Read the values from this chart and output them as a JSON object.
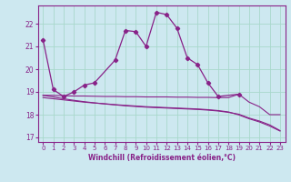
{
  "xlabel": "Windchill (Refroidissement éolien,°C)",
  "background_color": "#cde8f0",
  "grid_color": "#a8d8cc",
  "line_color": "#882288",
  "xlim": [
    -0.5,
    23.5
  ],
  "ylim": [
    16.8,
    22.8
  ],
  "yticks": [
    17,
    18,
    19,
    20,
    21,
    22
  ],
  "xticks": [
    0,
    1,
    2,
    3,
    4,
    5,
    6,
    7,
    8,
    9,
    10,
    11,
    12,
    13,
    14,
    15,
    16,
    17,
    18,
    19,
    20,
    21,
    22,
    23
  ],
  "line1_x": [
    0,
    1,
    2,
    3,
    4,
    5,
    7,
    8,
    9,
    10,
    11,
    12,
    13,
    14,
    15,
    16,
    17,
    19
  ],
  "line1_y": [
    21.3,
    19.1,
    18.8,
    19.0,
    19.3,
    19.4,
    20.4,
    21.7,
    21.65,
    21.0,
    22.5,
    22.4,
    21.8,
    20.5,
    20.2,
    19.4,
    18.8,
    18.9
  ],
  "line2_x": [
    0,
    1,
    2,
    3,
    4,
    5,
    6,
    7,
    8,
    9,
    10,
    11,
    12,
    13,
    14,
    15,
    16,
    17,
    18,
    19,
    20,
    21,
    22,
    23
  ],
  "line2_y": [
    18.85,
    18.85,
    18.83,
    18.82,
    18.82,
    18.81,
    18.8,
    18.8,
    18.79,
    18.79,
    18.78,
    18.78,
    18.78,
    18.77,
    18.77,
    18.76,
    18.76,
    18.75,
    18.75,
    18.9,
    18.55,
    18.35,
    18.0,
    18.0
  ],
  "line3_x": [
    0,
    1,
    2,
    3,
    4,
    5,
    6,
    7,
    8,
    9,
    10,
    11,
    12,
    13,
    14,
    15,
    16,
    17,
    18,
    19,
    20,
    21,
    22,
    23
  ],
  "line3_y": [
    18.85,
    18.78,
    18.7,
    18.63,
    18.57,
    18.52,
    18.47,
    18.43,
    18.39,
    18.36,
    18.33,
    18.31,
    18.29,
    18.27,
    18.25,
    18.23,
    18.2,
    18.16,
    18.1,
    18.02,
    17.85,
    17.72,
    17.55,
    17.3
  ],
  "line4_x": [
    0,
    1,
    2,
    3,
    4,
    5,
    6,
    7,
    8,
    9,
    10,
    11,
    12,
    13,
    14,
    15,
    16,
    17,
    18,
    19,
    20,
    21,
    22,
    23
  ],
  "line4_y": [
    18.75,
    18.7,
    18.65,
    18.6,
    18.55,
    18.51,
    18.48,
    18.44,
    18.41,
    18.38,
    18.35,
    18.33,
    18.31,
    18.29,
    18.27,
    18.25,
    18.22,
    18.18,
    18.12,
    17.99,
    17.82,
    17.68,
    17.5,
    17.28
  ]
}
